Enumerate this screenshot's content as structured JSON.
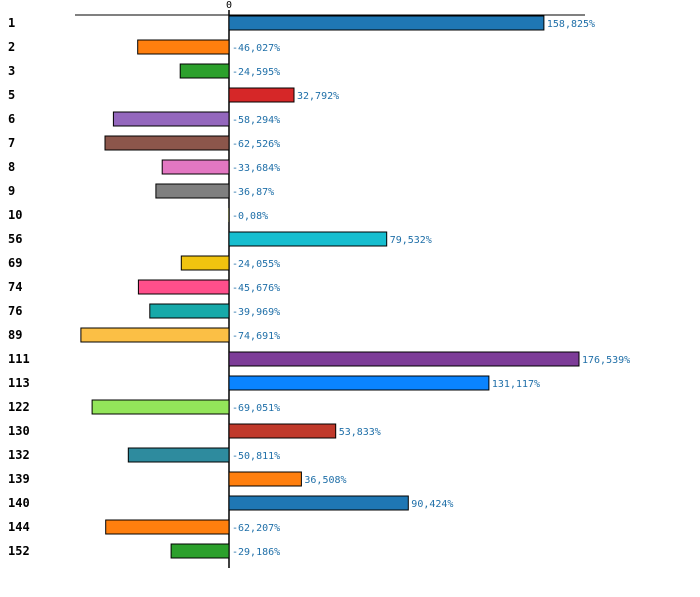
{
  "chart_data": {
    "type": "bar",
    "orientation": "horizontal",
    "title": "",
    "xlabel": "",
    "ylabel": "",
    "zero_tick_label": "0",
    "categories": [
      "1",
      "2",
      "3",
      "5",
      "6",
      "7",
      "8",
      "9",
      "10",
      "56",
      "69",
      "74",
      "76",
      "89",
      "111",
      "113",
      "122",
      "130",
      "132",
      "139",
      "140",
      "144",
      "152"
    ],
    "values": [
      158.825,
      -46.027,
      -24.595,
      32.792,
      -58.294,
      -62.526,
      -33.684,
      -36.87,
      -0.08,
      79.532,
      -24.055,
      -45.676,
      -39.969,
      -74.691,
      176.539,
      131.117,
      -69.051,
      53.833,
      -50.811,
      36.508,
      90.424,
      -62.207,
      -29.186
    ],
    "value_labels": [
      "158,825%",
      "-46,027%",
      "-24,595%",
      "32,792%",
      "-58,294%",
      "-62,526%",
      "-33,684%",
      "-36,87%",
      "-0,08%",
      "79,532%",
      "-24,055%",
      "-45,676%",
      "-39,969%",
      "-74,691%",
      "176,539%",
      "131,117%",
      "-69,051%",
      "53,833%",
      "-50,811%",
      "36,508%",
      "90,424%",
      "-62,207%",
      "-29,186%"
    ],
    "colors": [
      "#1f77b4",
      "#ff7f0e",
      "#2ca02c",
      "#d62728",
      "#9467bd",
      "#8c564b",
      "#e377c2",
      "#7f7f7f",
      "#bcbd22",
      "#17becf",
      "#f1c40f",
      "#ff4f8b",
      "#17a9a9",
      "#fbbf45",
      "#7d3c98",
      "#0a84ff",
      "#93e55a",
      "#c0392b",
      "#2e8b9e",
      "#ff7f0e",
      "#1f77b4",
      "#ff7f0e",
      "#2ca02c"
    ],
    "label_color": "#1f6fa8"
  }
}
